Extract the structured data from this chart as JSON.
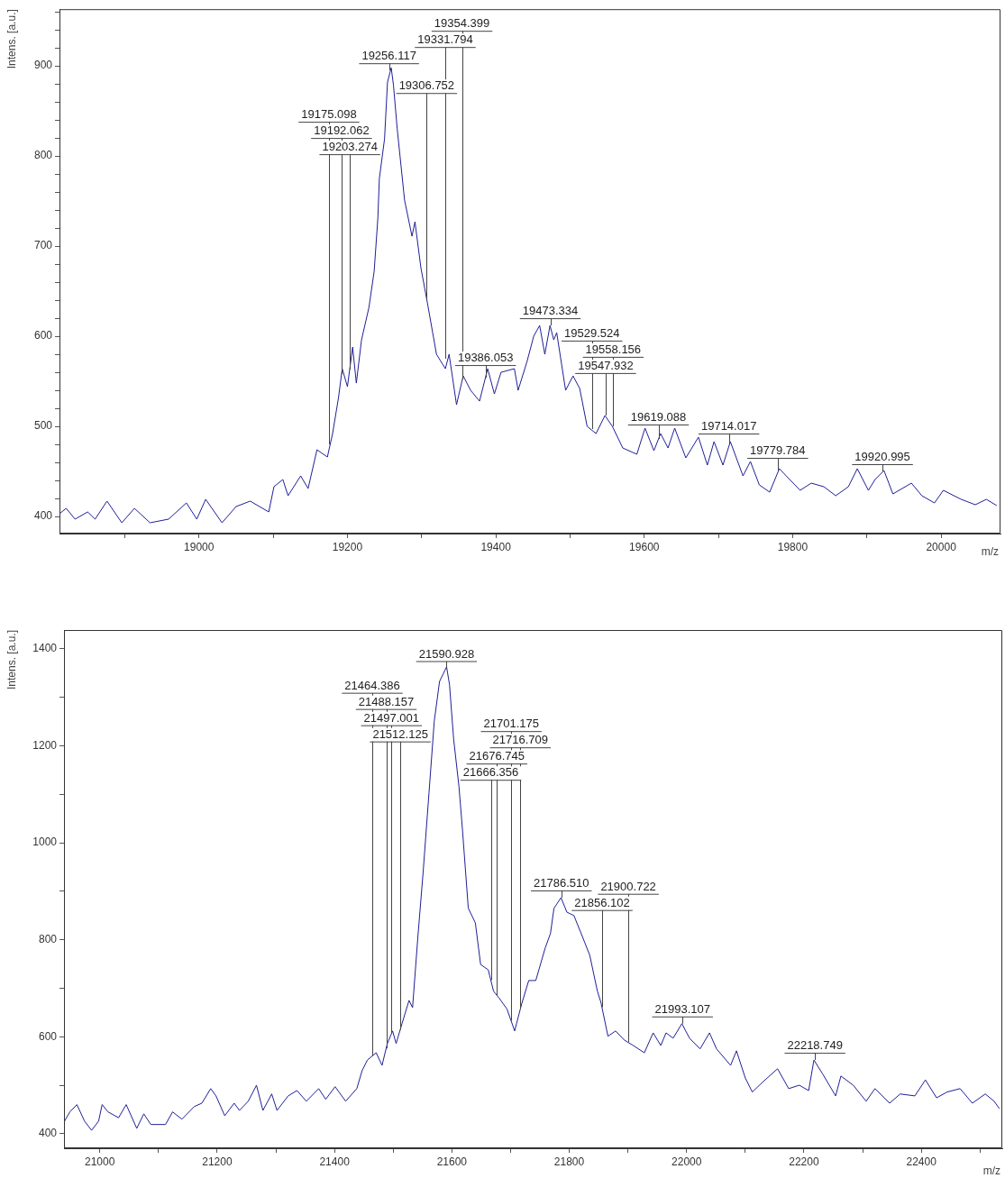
{
  "chart_data": [
    {
      "type": "line",
      "xlabel": "m/z",
      "ylabel": "Intens. [a.u.]",
      "color": "#1f1f96",
      "marker": "none",
      "x": [
        18812,
        18821,
        18833,
        18850,
        18860,
        18876,
        18896,
        18913,
        18934,
        18959,
        18983,
        18997,
        19009,
        19031,
        19050,
        19069,
        19094,
        19101,
        19113,
        19120,
        19137,
        19147,
        19159,
        19173,
        19180,
        19188,
        19193,
        19200,
        19207,
        19212,
        19219,
        19229,
        19236,
        19241,
        19243,
        19250,
        19254,
        19259,
        19262,
        19267,
        19277,
        19287,
        19291,
        19299,
        19308,
        19320,
        19332,
        19337,
        19347,
        19356,
        19366,
        19378,
        19389,
        19398,
        19407,
        19425,
        19430,
        19442,
        19451,
        19459,
        19466,
        19473,
        19478,
        19482,
        19494,
        19504,
        19513,
        19523,
        19535,
        19547,
        19557,
        19571,
        19590,
        19601,
        19613,
        19622,
        19632,
        19641,
        19656,
        19673,
        19685,
        19694,
        19706,
        19716,
        19733,
        19743,
        19755,
        19769,
        19782,
        19796,
        19810,
        19825,
        19842,
        19858,
        19875,
        19887,
        19902,
        19911,
        19923,
        19935,
        19960,
        19974,
        19991,
        20003,
        20027,
        20046,
        20061,
        20075
      ],
      "values": [
        403,
        409,
        397,
        405,
        397,
        417,
        393,
        409,
        393,
        397,
        415,
        397,
        419,
        393,
        411,
        417,
        405,
        433,
        441,
        423,
        445,
        431,
        474,
        466,
        492,
        532,
        564,
        544,
        588,
        548,
        596,
        632,
        672,
        731,
        775,
        819,
        882,
        898,
        879,
        831,
        751,
        711,
        727,
        676,
        636,
        580,
        564,
        580,
        524,
        556,
        540,
        528,
        564,
        536,
        560,
        564,
        540,
        572,
        600,
        612,
        580,
        612,
        596,
        604,
        540,
        556,
        542,
        500,
        492,
        512,
        500,
        476,
        469,
        498,
        473,
        492,
        476,
        498,
        465,
        488,
        457,
        483,
        457,
        483,
        445,
        461,
        435,
        427,
        453,
        441,
        429,
        437,
        433,
        423,
        433,
        453,
        429,
        441,
        451,
        425,
        437,
        423,
        415,
        429,
        419,
        413,
        419,
        412
      ],
      "xlim": [
        18812,
        20080
      ],
      "ylim": [
        381,
        963
      ],
      "xticks": [
        {
          "value": 18900,
          "label": null
        },
        19000,
        {
          "value": 19100,
          "label": null
        },
        19200,
        {
          "value": 19300,
          "label": null
        },
        19400,
        {
          "value": 19500,
          "label": null
        },
        19600,
        {
          "value": 19700,
          "label": null
        },
        19800,
        {
          "value": 19900,
          "label": null
        },
        20000
      ],
      "yticks": [
        400,
        {
          "value": 420,
          "label": null
        },
        {
          "value": 440,
          "label": null
        },
        {
          "value": 460,
          "label": null
        },
        {
          "value": 480,
          "label": null
        },
        500,
        {
          "value": 520,
          "label": null
        },
        {
          "value": 540,
          "label": null
        },
        {
          "value": 560,
          "label": null
        },
        {
          "value": 580,
          "label": null
        },
        600,
        {
          "value": 620,
          "label": null
        },
        {
          "value": 640,
          "label": null
        },
        {
          "value": 660,
          "label": null
        },
        {
          "value": 680,
          "label": null
        },
        700,
        {
          "value": 720,
          "label": null
        },
        {
          "value": 740,
          "label": null
        },
        {
          "value": 760,
          "label": null
        },
        {
          "value": 780,
          "label": null
        },
        800,
        {
          "value": 820,
          "label": null
        },
        {
          "value": 840,
          "label": null
        },
        {
          "value": 860,
          "label": null
        },
        {
          "value": 880,
          "label": null
        },
        900,
        {
          "value": 920,
          "label": null
        },
        {
          "value": 940,
          "label": null
        },
        {
          "value": 960,
          "label": null
        }
      ],
      "annotations": [
        {
          "text": "19256.117",
          "x": 19256.117,
          "y": 895
        },
        {
          "text": "19306.752",
          "x": 19306.752,
          "y": 641
        },
        {
          "text": "19203.274",
          "x": 19203.274,
          "y": 563
        },
        {
          "text": "19331.794",
          "x": 19331.794,
          "y": 575
        },
        {
          "text": "19192.062",
          "x": 19192.062,
          "y": 558
        },
        {
          "text": "19354.399",
          "x": 19354.399,
          "y": 552
        },
        {
          "text": "19175.098",
          "x": 19175.098,
          "y": 480
        },
        {
          "text": "19386.053",
          "x": 19386.053,
          "y": 554
        },
        {
          "text": "19473.334",
          "x": 19473.334,
          "y": 612
        },
        {
          "text": "19529.524",
          "x": 19529.524,
          "y": 497
        },
        {
          "text": "19547.932",
          "x": 19547.932,
          "y": 512
        },
        {
          "text": "19558.156",
          "x": 19558.156,
          "y": 500
        },
        {
          "text": "19619.088",
          "x": 19619.088,
          "y": 486
        },
        {
          "text": "19714.017",
          "x": 19714.017,
          "y": 481
        },
        {
          "text": "19779.784",
          "x": 19779.784,
          "y": 451
        },
        {
          "text": "19920.995",
          "x": 19920.995,
          "y": 450
        }
      ]
    },
    {
      "type": "line",
      "xlabel": "m/z",
      "ylabel": "Intens. [a.u.]",
      "color": "#1f1f96",
      "marker": "none",
      "x": [
        20940,
        20949,
        20961,
        20974,
        20986,
        20998,
        21004,
        21014,
        21032,
        21045,
        21063,
        21075,
        21087,
        21112,
        21124,
        21140,
        21161,
        21174,
        21189,
        21198,
        21213,
        21229,
        21238,
        21253,
        21267,
        21278,
        21293,
        21302,
        21321,
        21336,
        21352,
        21373,
        21385,
        21401,
        21419,
        21438,
        21447,
        21456,
        21471,
        21481,
        21490,
        21499,
        21505,
        21515,
        21527,
        21533,
        21542,
        21551,
        21561,
        21570,
        21579,
        21585,
        21591,
        21596,
        21603,
        21612,
        21618,
        21628,
        21640,
        21649,
        21662,
        21671,
        21681,
        21694,
        21707,
        21719,
        21731,
        21743,
        21759,
        21768,
        21774,
        21786,
        21796,
        21808,
        21823,
        21835,
        21848,
        21854,
        21866,
        21879,
        21894,
        21909,
        21928,
        21943,
        21956,
        21965,
        21977,
        21992,
        22005,
        22023,
        22039,
        22051,
        22075,
        22085,
        22100,
        22112,
        22131,
        22155,
        22174,
        22192,
        22208,
        22217,
        22232,
        22254,
        22263,
        22284,
        22306,
        22321,
        22346,
        22364,
        22389,
        22407,
        22426,
        22444,
        22466,
        22487,
        22509,
        22524,
        22533
      ],
      "values": [
        426,
        445,
        460,
        426,
        407,
        426,
        460,
        445,
        433,
        460,
        411,
        441,
        419,
        419,
        445,
        430,
        456,
        463,
        493,
        478,
        437,
        463,
        448,
        467,
        500,
        448,
        482,
        448,
        478,
        489,
        467,
        493,
        471,
        497,
        467,
        493,
        530,
        552,
        567,
        541,
        586,
        612,
        586,
        627,
        675,
        660,
        805,
        939,
        1103,
        1251,
        1333,
        1348,
        1363,
        1326,
        1214,
        1117,
        1028,
        865,
        835,
        749,
        738,
        694,
        679,
        657,
        612,
        668,
        716,
        716,
        783,
        813,
        865,
        887,
        857,
        850,
        805,
        768,
        694,
        671,
        601,
        612,
        593,
        582,
        567,
        608,
        582,
        608,
        597,
        627,
        597,
        575,
        608,
        575,
        541,
        571,
        515,
        486,
        508,
        534,
        493,
        500,
        489,
        552,
        523,
        478,
        519,
        500,
        467,
        493,
        463,
        482,
        478,
        511,
        474,
        486,
        493,
        463,
        482,
        467,
        452
      ],
      "xlim": [
        20939,
        22538
      ],
      "ylim": [
        370,
        1439
      ],
      "xticks": [
        21000,
        {
          "value": 21100,
          "label": null
        },
        21200,
        {
          "value": 21300,
          "label": null
        },
        21400,
        {
          "value": 21500,
          "label": null
        },
        21600,
        {
          "value": 21700,
          "label": null
        },
        21800,
        {
          "value": 21900,
          "label": null
        },
        22000,
        {
          "value": 22100,
          "label": null
        },
        22200,
        {
          "value": 22300,
          "label": null
        },
        22400,
        {
          "value": 22500,
          "label": null
        }
      ],
      "yticks": [
        400,
        {
          "value": 500,
          "label": null
        },
        600,
        {
          "value": 700,
          "label": null
        },
        800,
        {
          "value": 900,
          "label": null
        },
        1000,
        {
          "value": 1100,
          "label": null
        },
        1200,
        {
          "value": 1300,
          "label": null
        },
        1400
      ],
      "annotations": [
        {
          "text": "21590.928",
          "x": 21590.928,
          "y": 1360
        },
        {
          "text": "21512.125",
          "x": 21512.125,
          "y": 614
        },
        {
          "text": "21666.356",
          "x": 21666.356,
          "y": 717
        },
        {
          "text": "21676.745",
          "x": 21676.745,
          "y": 686
        },
        {
          "text": "21497.001",
          "x": 21497.001,
          "y": 606
        },
        {
          "text": "21716.709",
          "x": 21716.709,
          "y": 658
        },
        {
          "text": "21488.157",
          "x": 21488.157,
          "y": 576
        },
        {
          "text": "21701.175",
          "x": 21701.175,
          "y": 633
        },
        {
          "text": "21786.510",
          "x": 21786.51,
          "y": 887
        },
        {
          "text": "21856.102",
          "x": 21856.102,
          "y": 661
        },
        {
          "text": "21900.722",
          "x": 21900.722,
          "y": 589
        },
        {
          "text": "21993.107",
          "x": 21993.107,
          "y": 627
        },
        {
          "text": "21464.386",
          "x": 21464.386,
          "y": 560
        },
        {
          "text": "22218.749",
          "x": 22218.749,
          "y": 552
        }
      ]
    }
  ]
}
